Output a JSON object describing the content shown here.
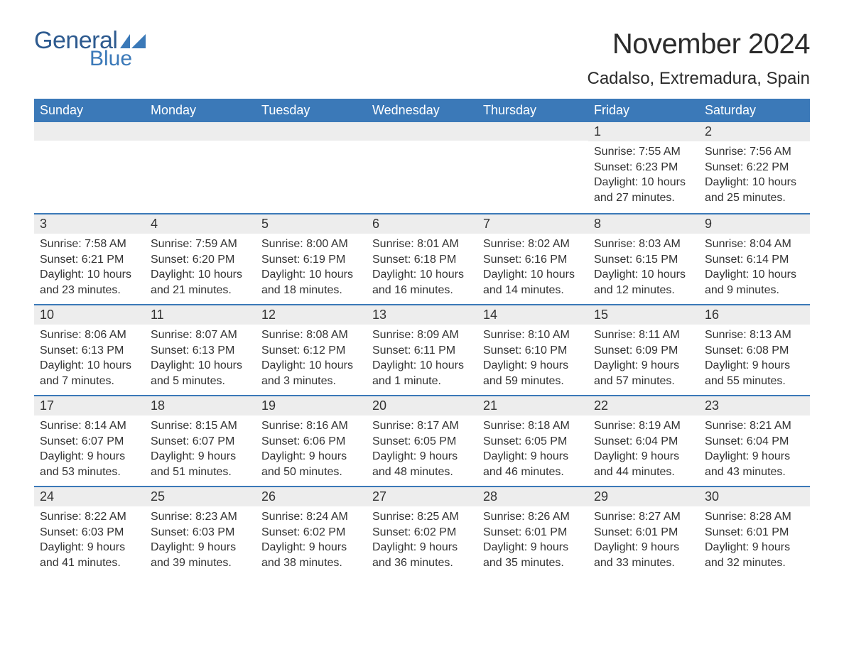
{
  "logo": {
    "general": "General",
    "blue": "Blue",
    "flag_color": "#3b79b8"
  },
  "title": "November 2024",
  "location": "Cadalso, Extremadura, Spain",
  "colors": {
    "header_bg": "#3b79b8",
    "header_text": "#ffffff",
    "daynum_bg": "#ededed",
    "daynum_border": "#3b79b8",
    "body_text": "#333333",
    "page_bg": "#ffffff"
  },
  "weekdays": [
    "Sunday",
    "Monday",
    "Tuesday",
    "Wednesday",
    "Thursday",
    "Friday",
    "Saturday"
  ],
  "weeks": [
    [
      null,
      null,
      null,
      null,
      null,
      {
        "n": "1",
        "sunrise": "Sunrise: 7:55 AM",
        "sunset": "Sunset: 6:23 PM",
        "day": "Daylight: 10 hours and 27 minutes."
      },
      {
        "n": "2",
        "sunrise": "Sunrise: 7:56 AM",
        "sunset": "Sunset: 6:22 PM",
        "day": "Daylight: 10 hours and 25 minutes."
      }
    ],
    [
      {
        "n": "3",
        "sunrise": "Sunrise: 7:58 AM",
        "sunset": "Sunset: 6:21 PM",
        "day": "Daylight: 10 hours and 23 minutes."
      },
      {
        "n": "4",
        "sunrise": "Sunrise: 7:59 AM",
        "sunset": "Sunset: 6:20 PM",
        "day": "Daylight: 10 hours and 21 minutes."
      },
      {
        "n": "5",
        "sunrise": "Sunrise: 8:00 AM",
        "sunset": "Sunset: 6:19 PM",
        "day": "Daylight: 10 hours and 18 minutes."
      },
      {
        "n": "6",
        "sunrise": "Sunrise: 8:01 AM",
        "sunset": "Sunset: 6:18 PM",
        "day": "Daylight: 10 hours and 16 minutes."
      },
      {
        "n": "7",
        "sunrise": "Sunrise: 8:02 AM",
        "sunset": "Sunset: 6:16 PM",
        "day": "Daylight: 10 hours and 14 minutes."
      },
      {
        "n": "8",
        "sunrise": "Sunrise: 8:03 AM",
        "sunset": "Sunset: 6:15 PM",
        "day": "Daylight: 10 hours and 12 minutes."
      },
      {
        "n": "9",
        "sunrise": "Sunrise: 8:04 AM",
        "sunset": "Sunset: 6:14 PM",
        "day": "Daylight: 10 hours and 9 minutes."
      }
    ],
    [
      {
        "n": "10",
        "sunrise": "Sunrise: 8:06 AM",
        "sunset": "Sunset: 6:13 PM",
        "day": "Daylight: 10 hours and 7 minutes."
      },
      {
        "n": "11",
        "sunrise": "Sunrise: 8:07 AM",
        "sunset": "Sunset: 6:13 PM",
        "day": "Daylight: 10 hours and 5 minutes."
      },
      {
        "n": "12",
        "sunrise": "Sunrise: 8:08 AM",
        "sunset": "Sunset: 6:12 PM",
        "day": "Daylight: 10 hours and 3 minutes."
      },
      {
        "n": "13",
        "sunrise": "Sunrise: 8:09 AM",
        "sunset": "Sunset: 6:11 PM",
        "day": "Daylight: 10 hours and 1 minute."
      },
      {
        "n": "14",
        "sunrise": "Sunrise: 8:10 AM",
        "sunset": "Sunset: 6:10 PM",
        "day": "Daylight: 9 hours and 59 minutes."
      },
      {
        "n": "15",
        "sunrise": "Sunrise: 8:11 AM",
        "sunset": "Sunset: 6:09 PM",
        "day": "Daylight: 9 hours and 57 minutes."
      },
      {
        "n": "16",
        "sunrise": "Sunrise: 8:13 AM",
        "sunset": "Sunset: 6:08 PM",
        "day": "Daylight: 9 hours and 55 minutes."
      }
    ],
    [
      {
        "n": "17",
        "sunrise": "Sunrise: 8:14 AM",
        "sunset": "Sunset: 6:07 PM",
        "day": "Daylight: 9 hours and 53 minutes."
      },
      {
        "n": "18",
        "sunrise": "Sunrise: 8:15 AM",
        "sunset": "Sunset: 6:07 PM",
        "day": "Daylight: 9 hours and 51 minutes."
      },
      {
        "n": "19",
        "sunrise": "Sunrise: 8:16 AM",
        "sunset": "Sunset: 6:06 PM",
        "day": "Daylight: 9 hours and 50 minutes."
      },
      {
        "n": "20",
        "sunrise": "Sunrise: 8:17 AM",
        "sunset": "Sunset: 6:05 PM",
        "day": "Daylight: 9 hours and 48 minutes."
      },
      {
        "n": "21",
        "sunrise": "Sunrise: 8:18 AM",
        "sunset": "Sunset: 6:05 PM",
        "day": "Daylight: 9 hours and 46 minutes."
      },
      {
        "n": "22",
        "sunrise": "Sunrise: 8:19 AM",
        "sunset": "Sunset: 6:04 PM",
        "day": "Daylight: 9 hours and 44 minutes."
      },
      {
        "n": "23",
        "sunrise": "Sunrise: 8:21 AM",
        "sunset": "Sunset: 6:04 PM",
        "day": "Daylight: 9 hours and 43 minutes."
      }
    ],
    [
      {
        "n": "24",
        "sunrise": "Sunrise: 8:22 AM",
        "sunset": "Sunset: 6:03 PM",
        "day": "Daylight: 9 hours and 41 minutes."
      },
      {
        "n": "25",
        "sunrise": "Sunrise: 8:23 AM",
        "sunset": "Sunset: 6:03 PM",
        "day": "Daylight: 9 hours and 39 minutes."
      },
      {
        "n": "26",
        "sunrise": "Sunrise: 8:24 AM",
        "sunset": "Sunset: 6:02 PM",
        "day": "Daylight: 9 hours and 38 minutes."
      },
      {
        "n": "27",
        "sunrise": "Sunrise: 8:25 AM",
        "sunset": "Sunset: 6:02 PM",
        "day": "Daylight: 9 hours and 36 minutes."
      },
      {
        "n": "28",
        "sunrise": "Sunrise: 8:26 AM",
        "sunset": "Sunset: 6:01 PM",
        "day": "Daylight: 9 hours and 35 minutes."
      },
      {
        "n": "29",
        "sunrise": "Sunrise: 8:27 AM",
        "sunset": "Sunset: 6:01 PM",
        "day": "Daylight: 9 hours and 33 minutes."
      },
      {
        "n": "30",
        "sunrise": "Sunrise: 8:28 AM",
        "sunset": "Sunset: 6:01 PM",
        "day": "Daylight: 9 hours and 32 minutes."
      }
    ]
  ]
}
